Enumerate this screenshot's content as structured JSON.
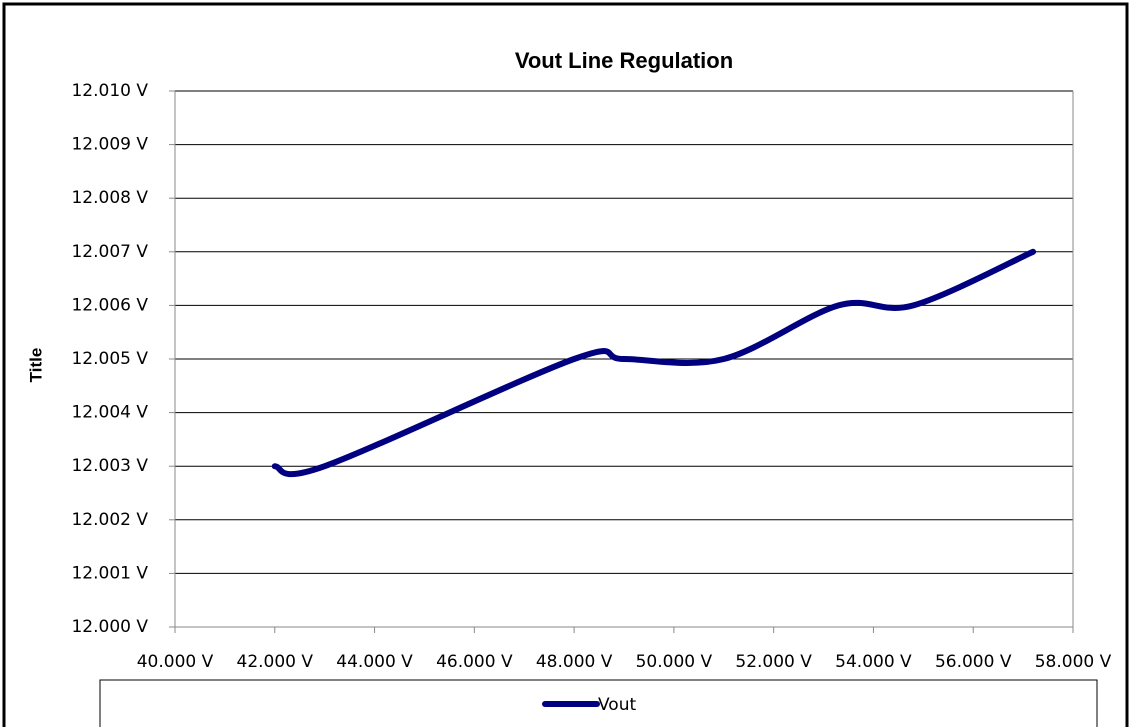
{
  "chart_data": {
    "type": "line",
    "title": "Vout Line Regulation",
    "y_label": "Title",
    "x": [
      42,
      43,
      48,
      49,
      51,
      53.3,
      54.8,
      57.2
    ],
    "series": [
      {
        "name": "Vout",
        "color": "#000080",
        "values": [
          12.003,
          12.003,
          12.005,
          12.005,
          12.005,
          12.006,
          12.006,
          12.007
        ]
      }
    ],
    "xlim": [
      40,
      58
    ],
    "xticks": [
      {
        "value": 40,
        "label": "40.000 V"
      },
      {
        "value": 42,
        "label": "42.000 V"
      },
      {
        "value": 44,
        "label": "44.000 V"
      },
      {
        "value": 46,
        "label": "46.000 V"
      },
      {
        "value": 48,
        "label": "48.000 V"
      },
      {
        "value": 50,
        "label": "50.000 V"
      },
      {
        "value": 52,
        "label": "52.000 V"
      },
      {
        "value": 54,
        "label": "54.000 V"
      },
      {
        "value": 56,
        "label": "56.000 V"
      },
      {
        "value": 58,
        "label": "58.000 V"
      }
    ],
    "ylim": [
      12.0,
      12.01
    ],
    "yticks": [
      {
        "value": 12.0,
        "label": "12.000 V"
      },
      {
        "value": 12.001,
        "label": "12.001 V"
      },
      {
        "value": 12.002,
        "label": "12.002 V"
      },
      {
        "value": 12.003,
        "label": "12.003 V"
      },
      {
        "value": 12.004,
        "label": "12.004 V"
      },
      {
        "value": 12.005,
        "label": "12.005 V"
      },
      {
        "value": 12.006,
        "label": "12.006 V"
      },
      {
        "value": 12.007,
        "label": "12.007 V"
      },
      {
        "value": 12.008,
        "label": "12.008 V"
      },
      {
        "value": 12.009,
        "label": "12.009 V"
      },
      {
        "value": 12.01,
        "label": "12.010 V"
      }
    ],
    "grid": true,
    "legend": "bottom"
  }
}
